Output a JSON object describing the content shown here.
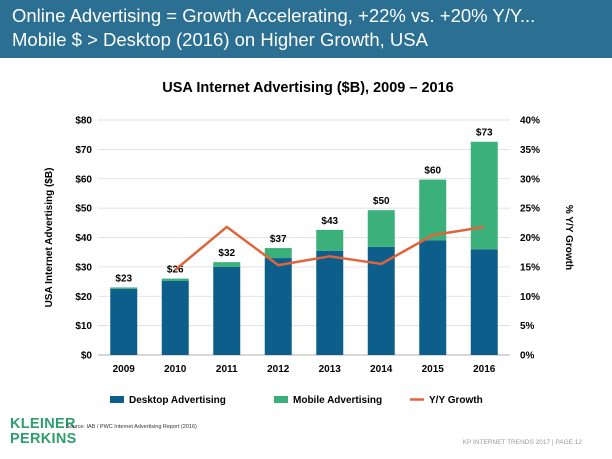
{
  "header": {
    "line1": "Online Advertising = Growth Accelerating, +22% vs. +20% Y/Y...",
    "line2": "Mobile $ > Desktop (2016) on Higher Growth, USA"
  },
  "logo": {
    "line1": "KLEINER",
    "line2": "PERKINS"
  },
  "source": "Source: IAB / PWC Internet Advertising Report (2016)",
  "footer": "KP INTERNET TRENDS 2017  |  PAGE 12",
  "colors": {
    "header": "#2b6f93",
    "desktop": "#0e5e8c",
    "mobile": "#3bb07a",
    "growth": "#e0633a",
    "logo": "#2e9e6e"
  },
  "chart_data": {
    "type": "bar",
    "title": "USA Internet Advertising ($B), 2009 – 2016",
    "xlabel": "",
    "ylabel": "USA Internet Advertising ($B)",
    "y2label": "% Y/Y Growth",
    "categories": [
      "2009",
      "2010",
      "2011",
      "2012",
      "2013",
      "2014",
      "2015",
      "2016"
    ],
    "stacked": true,
    "series": [
      {
        "name": "Desktop Advertising",
        "type": "bar",
        "values": [
          22.5,
          25.2,
          30.0,
          33.0,
          35.5,
          36.8,
          39.0,
          36.0
        ]
      },
      {
        "name": "Mobile Advertising",
        "type": "bar",
        "values": [
          0.5,
          0.8,
          1.6,
          3.4,
          7.1,
          12.5,
          20.7,
          36.6
        ]
      },
      {
        "name": "Y/Y Growth",
        "type": "line",
        "axis": "right",
        "values": [
          null,
          14.5,
          21.8,
          15.3,
          16.8,
          15.5,
          20.4,
          21.8
        ]
      }
    ],
    "total_labels": [
      "$23",
      "$26",
      "$32",
      "$37",
      "$43",
      "$50",
      "$60",
      "$73"
    ],
    "ylim": [
      0,
      80
    ],
    "yticks": [
      "$0",
      "$10",
      "$20",
      "$30",
      "$40",
      "$50",
      "$60",
      "$70",
      "$80"
    ],
    "y2lim": [
      0,
      40
    ],
    "y2ticks": [
      "0%",
      "5%",
      "10%",
      "15%",
      "20%",
      "25%",
      "30%",
      "35%",
      "40%"
    ],
    "grid": true,
    "legend_position": "bottom"
  }
}
